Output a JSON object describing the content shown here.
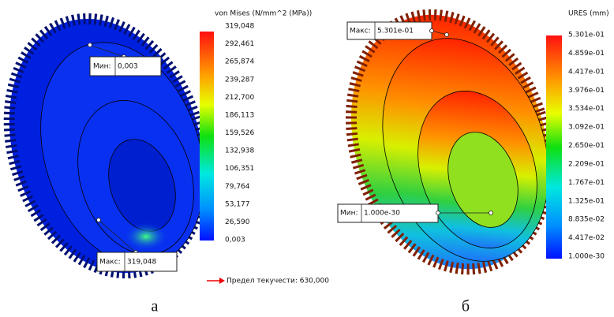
{
  "panels": [
    {
      "legend_title": "von Mises (N/mm^2 (MPa))",
      "ticks": [
        "319,048",
        "292,461",
        "265,874",
        "239,287",
        "212,700",
        "186,113",
        "159,526",
        "132,938",
        "106,351",
        "79,764",
        "53,177",
        "26,590",
        "0,003"
      ],
      "max_callout": {
        "label": "Макс:",
        "value": "319,048"
      },
      "min_callout": {
        "label": "Мин:",
        "value": "0,003"
      },
      "yield_note": "Предел текучести: 630,000",
      "caption": "а"
    },
    {
      "legend_title": "URES (mm)",
      "ticks": [
        "5.301e-01",
        "4.859e-01",
        "4.417e-01",
        "3.976e-01",
        "3.534e-01",
        "3.092e-01",
        "2.650e-01",
        "2.209e-01",
        "1.767e-01",
        "1.325e-01",
        "8.835e-02",
        "4.417e-02",
        "1.000e-30"
      ],
      "max_callout": {
        "label": "Макс:",
        "value": "5.301e-01"
      },
      "min_callout": {
        "label": "Мин:",
        "value": "1.000e-30"
      },
      "caption": "б"
    }
  ]
}
